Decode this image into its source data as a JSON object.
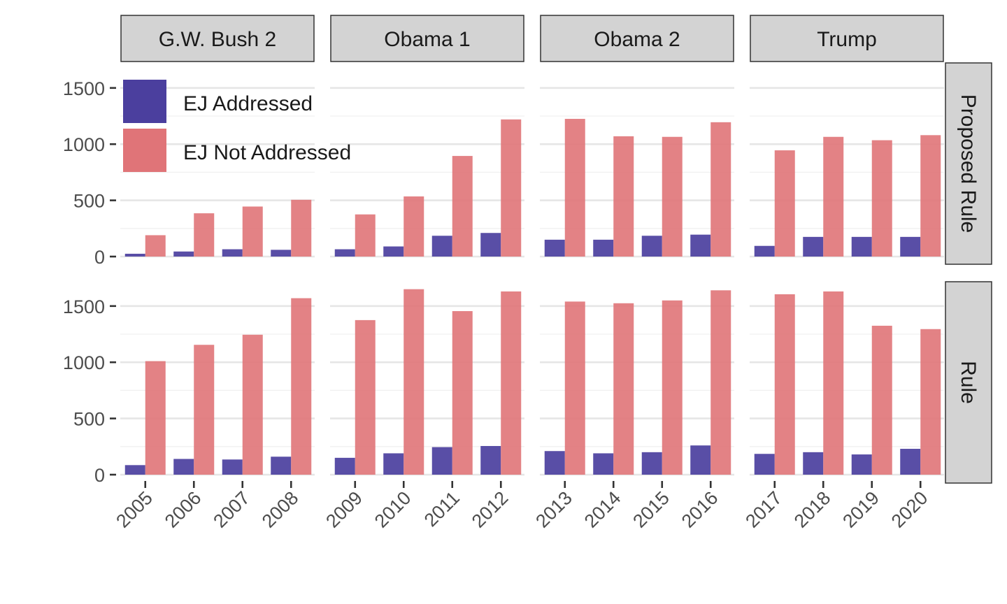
{
  "chart_data": {
    "type": "bar",
    "facets": {
      "columns": [
        "G.W. Bush 2",
        "Obama 1",
        "Obama 2",
        "Trump"
      ],
      "rows": [
        "Proposed Rule",
        "Rule"
      ]
    },
    "years": [
      [
        "2005",
        "2006",
        "2007",
        "2008"
      ],
      [
        "2009",
        "2010",
        "2011",
        "2012"
      ],
      [
        "2013",
        "2014",
        "2015",
        "2016"
      ],
      [
        "2017",
        "2018",
        "2019",
        "2020"
      ]
    ],
    "series_names": [
      "EJ Addressed",
      "EJ Not Addressed"
    ],
    "colors": [
      "#4b3f9e",
      "#e07478"
    ],
    "ylim": [
      0,
      1650
    ],
    "yticks": [
      "0",
      "500",
      "1000",
      "1500"
    ],
    "ytick_values": [
      0,
      500,
      1000,
      1500
    ],
    "legend_position": "top-left",
    "grid": true,
    "data": {
      "Proposed Rule": {
        "EJ Addressed": [
          25,
          45,
          65,
          60,
          65,
          90,
          185,
          210,
          150,
          150,
          185,
          195,
          95,
          175,
          175,
          175
        ],
        "EJ Not Addressed": [
          190,
          385,
          445,
          505,
          375,
          535,
          895,
          1220,
          1225,
          1070,
          1065,
          1195,
          945,
          1065,
          1035,
          1080
        ]
      },
      "Rule": {
        "EJ Addressed": [
          85,
          140,
          135,
          160,
          150,
          190,
          245,
          255,
          210,
          190,
          200,
          260,
          185,
          200,
          180,
          230
        ],
        "EJ Not Addressed": [
          1010,
          1155,
          1245,
          1570,
          1375,
          1650,
          1455,
          1630,
          1540,
          1525,
          1550,
          1640,
          1605,
          1630,
          1325,
          1295
        ]
      }
    }
  }
}
